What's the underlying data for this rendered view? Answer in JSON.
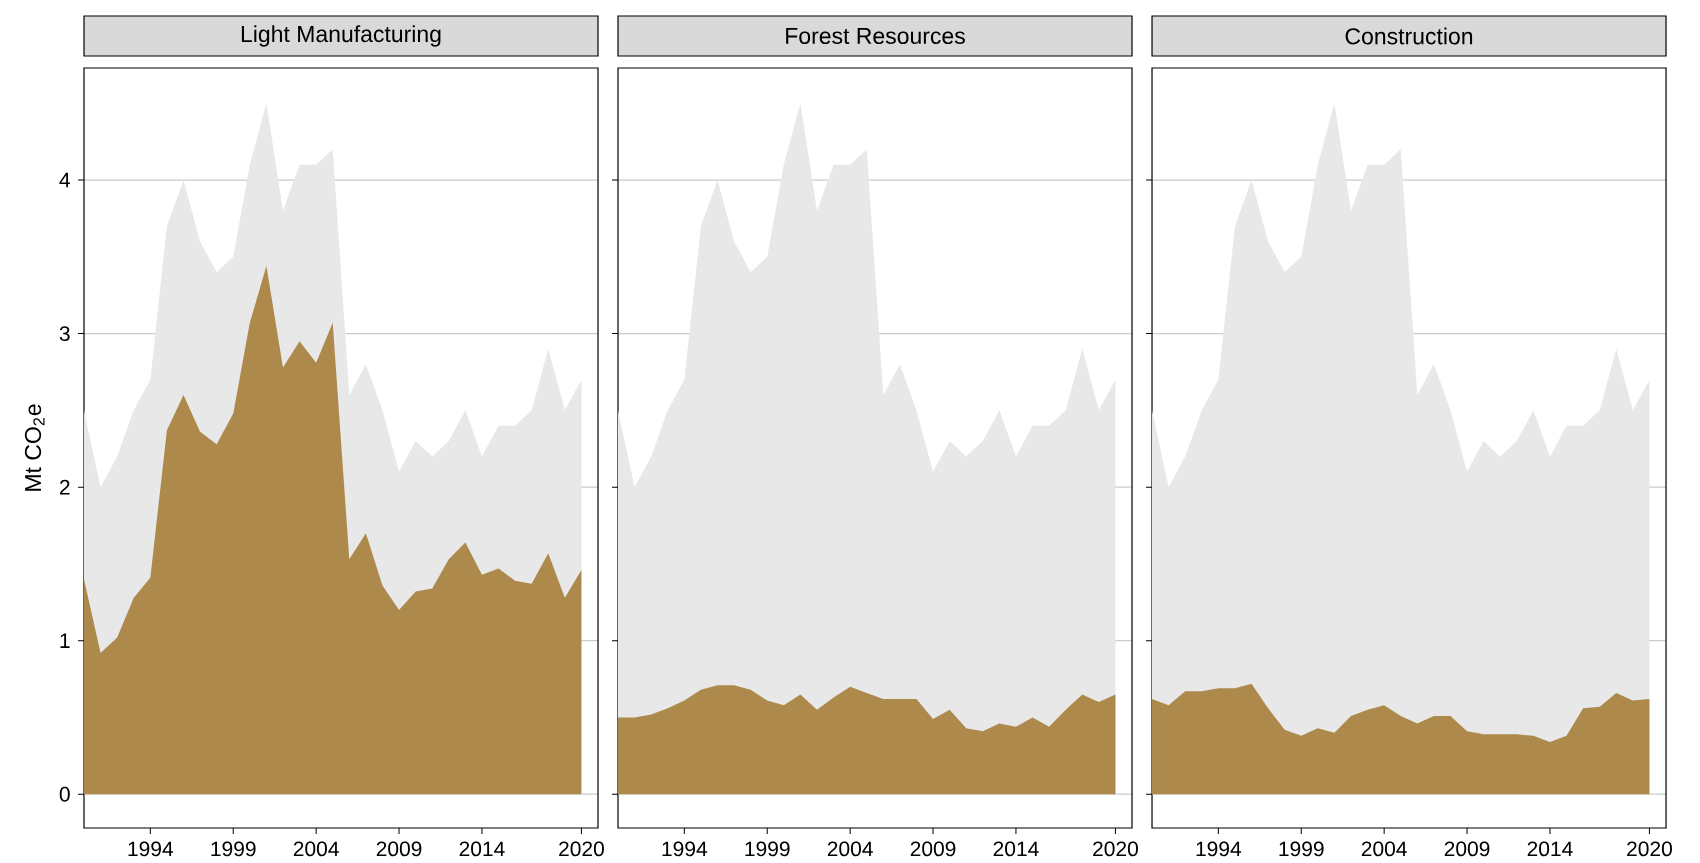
{
  "chart_data": [
    {
      "type": "area",
      "title": "Light Manufacturing",
      "ylabel": "Mt CO$_{2}$e",
      "x": [
        1990,
        1991,
        1992,
        1993,
        1994,
        1995,
        1996,
        1997,
        1998,
        1999,
        2000,
        2001,
        2002,
        2003,
        2004,
        2005,
        2006,
        2007,
        2008,
        2009,
        2010,
        2011,
        2012,
        2013,
        2014,
        2015,
        2016,
        2017,
        2018,
        2019,
        2020
      ],
      "series": [
        {
          "color": "#e8e8e8",
          "values": [
            2.5,
            2.0,
            2.2,
            2.5,
            2.7,
            3.7,
            4.0,
            3.6,
            3.4,
            3.5,
            4.1,
            4.5,
            3.8,
            4.1,
            4.1,
            4.2,
            2.6,
            2.8,
            2.5,
            2.1,
            2.3,
            2.2,
            2.3,
            2.5,
            2.2,
            2.4,
            2.4,
            2.5,
            2.9,
            2.5,
            2.7
          ]
        },
        {
          "color": "#ad8a4c",
          "values": [
            1.4,
            0.92,
            1.02,
            1.28,
            1.41,
            2.37,
            2.6,
            2.36,
            2.28,
            2.48,
            3.07,
            3.44,
            2.78,
            2.95,
            2.81,
            3.07,
            1.53,
            1.7,
            1.36,
            1.2,
            1.32,
            1.34,
            1.53,
            1.64,
            1.43,
            1.47,
            1.39,
            1.37,
            1.57,
            1.28,
            1.46
          ]
        }
      ],
      "xlim": [
        1990,
        2021
      ],
      "ylim": [
        -0.22,
        4.73
      ],
      "xticks": [
        1994,
        1999,
        2004,
        2009,
        2014,
        2020
      ],
      "yticks": [
        0,
        1,
        2,
        3,
        4
      ],
      "grid": "y"
    },
    {
      "type": "area",
      "title": "Forest Resources",
      "x": [
        1990,
        1991,
        1992,
        1993,
        1994,
        1995,
        1996,
        1997,
        1998,
        1999,
        2000,
        2001,
        2002,
        2003,
        2004,
        2005,
        2006,
        2007,
        2008,
        2009,
        2010,
        2011,
        2012,
        2013,
        2014,
        2015,
        2016,
        2017,
        2018,
        2019,
        2020
      ],
      "series": [
        {
          "color": "#e8e8e8",
          "values": [
            2.5,
            2.0,
            2.2,
            2.5,
            2.7,
            3.7,
            4.0,
            3.6,
            3.4,
            3.5,
            4.1,
            4.5,
            3.8,
            4.1,
            4.1,
            4.2,
            2.6,
            2.8,
            2.5,
            2.1,
            2.3,
            2.2,
            2.3,
            2.5,
            2.2,
            2.4,
            2.4,
            2.5,
            2.9,
            2.5,
            2.7
          ]
        },
        {
          "color": "#ad8a4c",
          "values": [
            0.5,
            0.5,
            0.52,
            0.56,
            0.61,
            0.68,
            0.71,
            0.71,
            0.68,
            0.61,
            0.58,
            0.65,
            0.55,
            0.63,
            0.7,
            0.66,
            0.62,
            0.62,
            0.62,
            0.49,
            0.55,
            0.43,
            0.41,
            0.46,
            0.44,
            0.5,
            0.44,
            0.55,
            0.65,
            0.6,
            0.65
          ]
        }
      ],
      "xlim": [
        1990,
        2021
      ],
      "ylim": [
        -0.22,
        4.73
      ],
      "xticks": [
        1994,
        1999,
        2004,
        2009,
        2014,
        2020
      ],
      "yticks": [
        0,
        1,
        2,
        3,
        4
      ],
      "grid": "y",
      "tick_labels": "x"
    },
    {
      "type": "area",
      "title": "Construction",
      "x": [
        1990,
        1991,
        1992,
        1993,
        1994,
        1995,
        1996,
        1997,
        1998,
        1999,
        2000,
        2001,
        2002,
        2003,
        2004,
        2005,
        2006,
        2007,
        2008,
        2009,
        2010,
        2011,
        2012,
        2013,
        2014,
        2015,
        2016,
        2017,
        2018,
        2019,
        2020
      ],
      "series": [
        {
          "color": "#e8e8e8",
          "values": [
            2.5,
            2.0,
            2.2,
            2.5,
            2.7,
            3.7,
            4.0,
            3.6,
            3.4,
            3.5,
            4.1,
            4.5,
            3.8,
            4.1,
            4.1,
            4.2,
            2.6,
            2.8,
            2.5,
            2.1,
            2.3,
            2.2,
            2.3,
            2.5,
            2.2,
            2.4,
            2.4,
            2.5,
            2.9,
            2.5,
            2.7
          ]
        },
        {
          "color": "#ad8a4c",
          "values": [
            0.62,
            0.58,
            0.67,
            0.67,
            0.69,
            0.69,
            0.72,
            0.56,
            0.42,
            0.38,
            0.43,
            0.4,
            0.51,
            0.55,
            0.58,
            0.51,
            0.46,
            0.51,
            0.51,
            0.41,
            0.39,
            0.39,
            0.39,
            0.38,
            0.34,
            0.38,
            0.56,
            0.57,
            0.66,
            0.61,
            0.62
          ]
        }
      ],
      "xlim": [
        1990,
        2021
      ],
      "ylim": [
        -0.22,
        4.73
      ],
      "xticks": [
        1994,
        1999,
        2004,
        2009,
        2014,
        2020
      ],
      "yticks": [
        0,
        1,
        2,
        3,
        4
      ],
      "grid": "y",
      "tick_labels": "x"
    }
  ]
}
